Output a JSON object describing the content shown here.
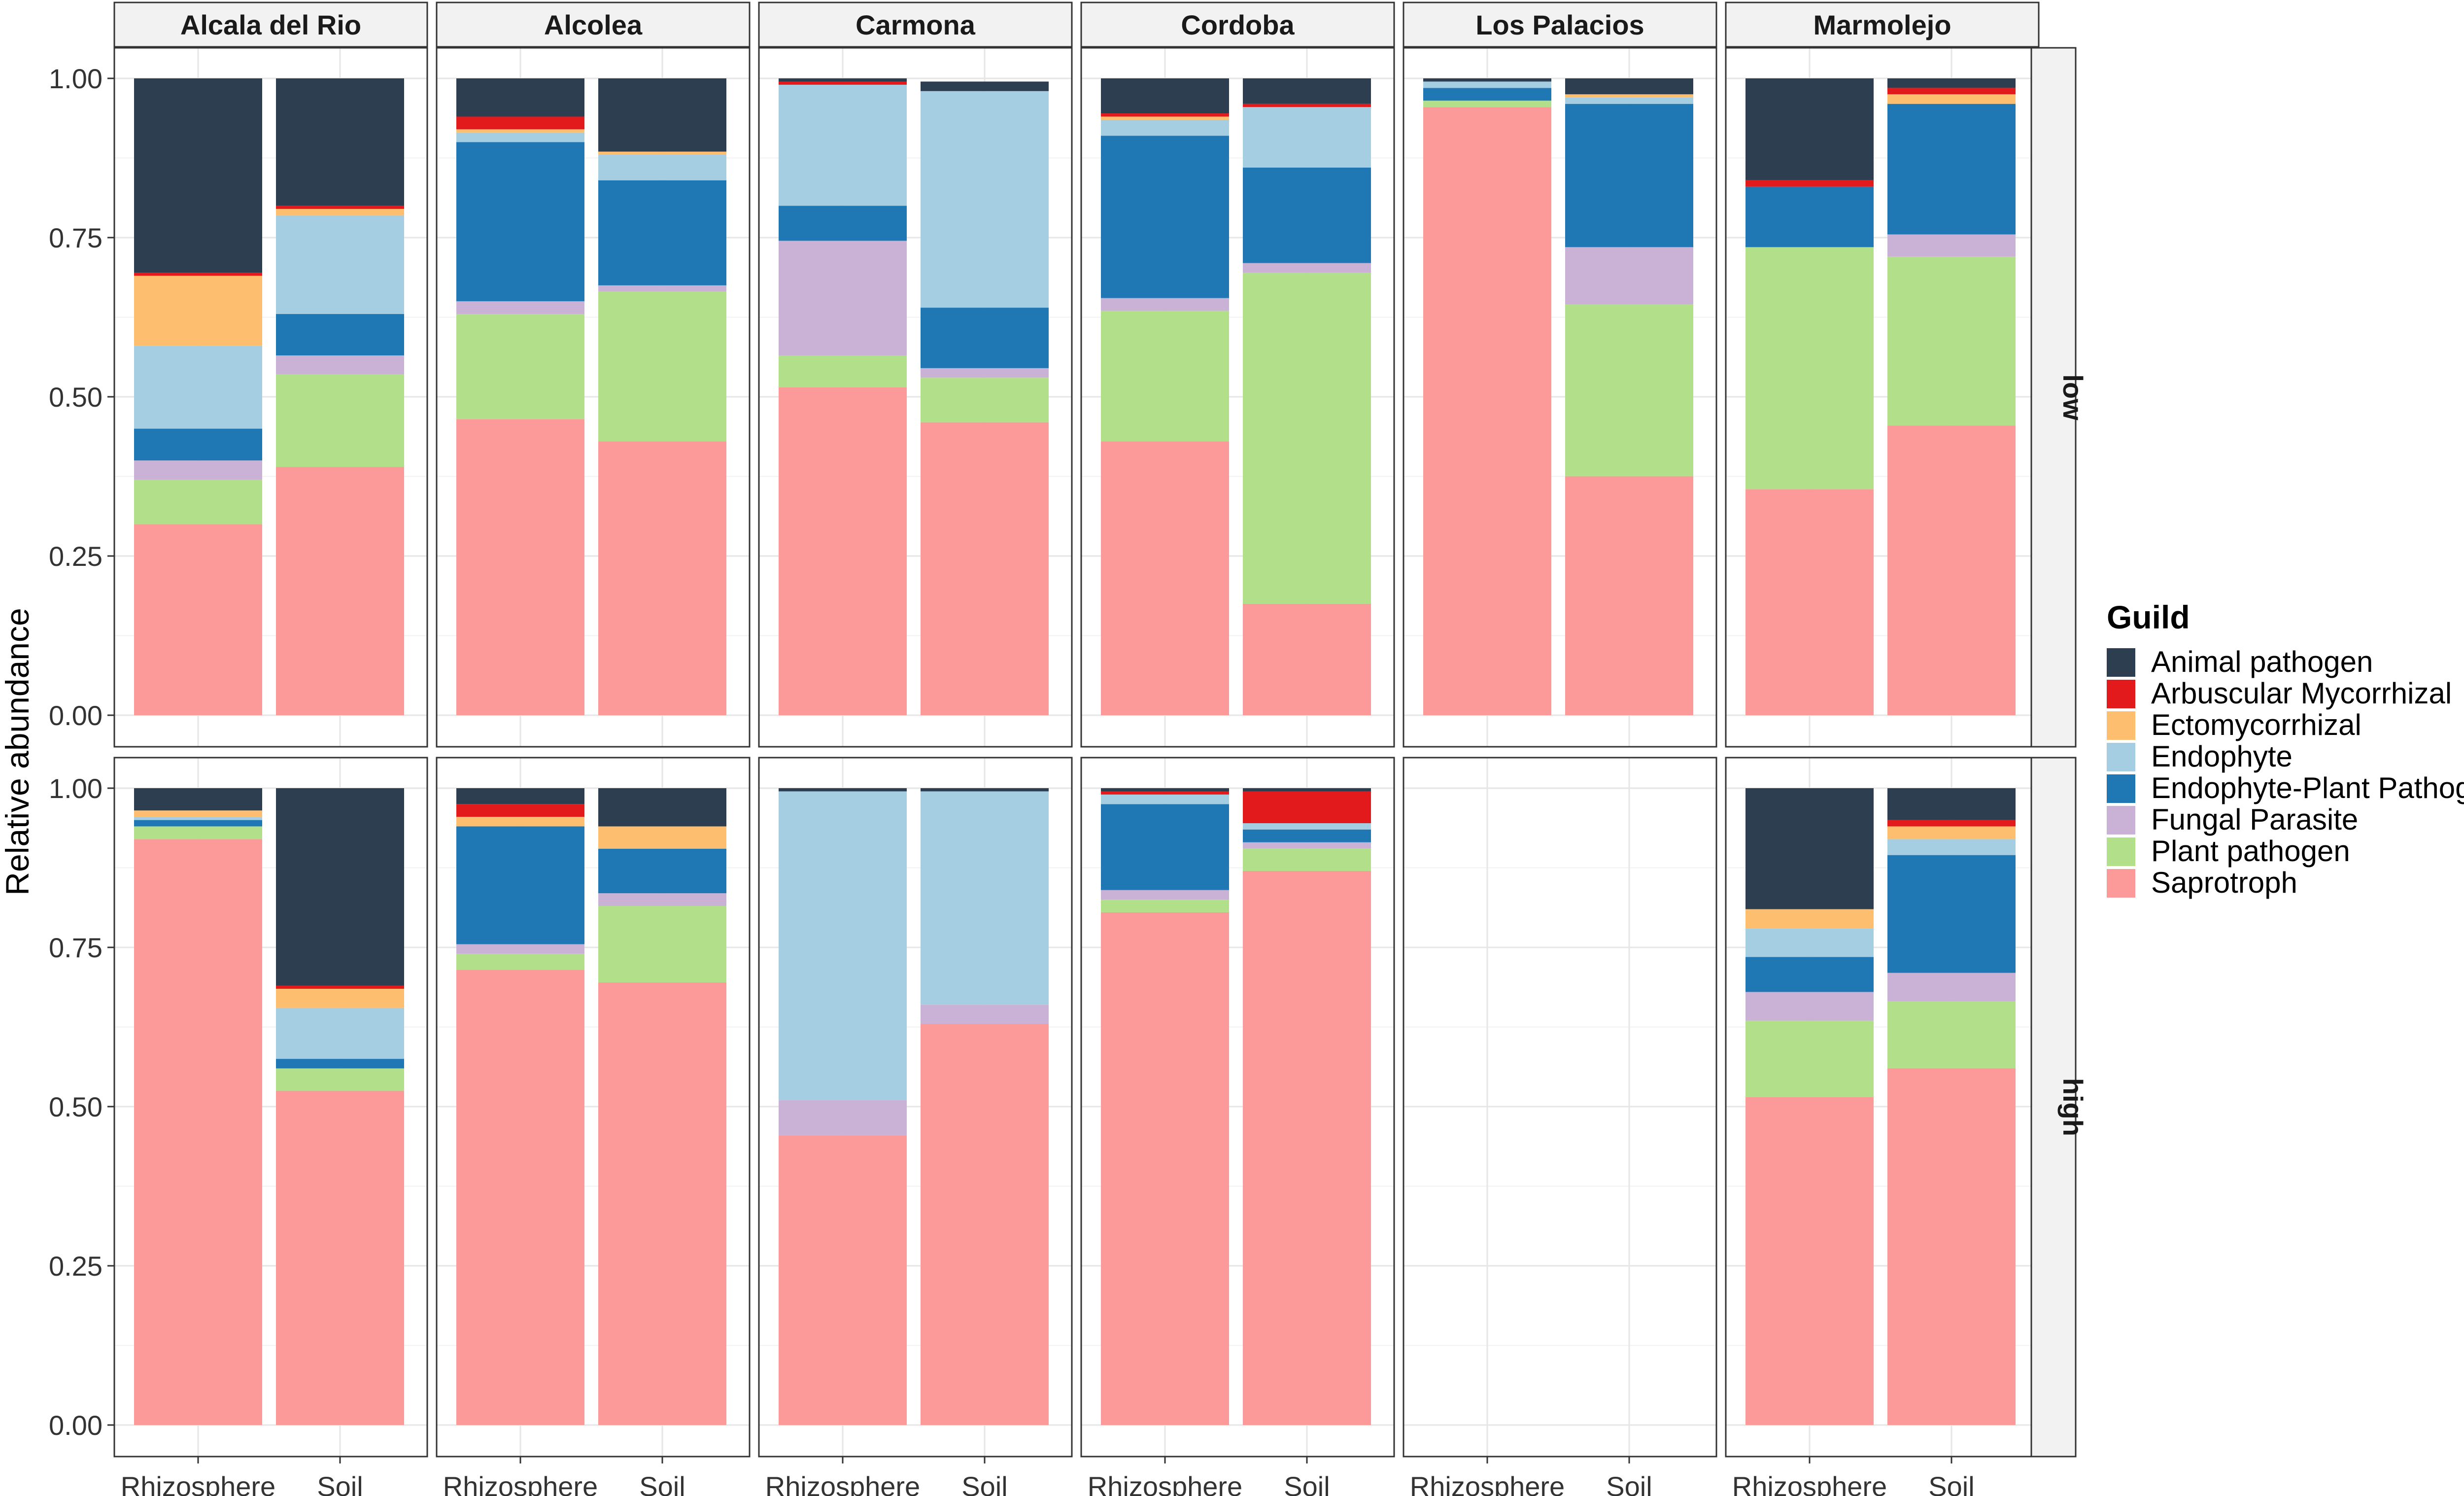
{
  "chart_data": {
    "type": "stacked-bar",
    "ylabel": "Relative abundance",
    "xlabel": "",
    "ylim": [
      0,
      1
    ],
    "yticks": [
      "0.00",
      "0.25",
      "0.50",
      "0.75",
      "1.00"
    ],
    "ytick_values": [
      0,
      0.25,
      0.5,
      0.75,
      1.0
    ],
    "grid": true,
    "legend_position": "right",
    "legend_title": "Guild",
    "categories": [
      "Rhizosphere",
      "Soil"
    ],
    "columns": [
      "Alcala del Rio",
      "Alcolea",
      "Carmona",
      "Cordoba",
      "Los Palacios",
      "Marmolejo"
    ],
    "rows": [
      "low",
      "high"
    ],
    "guilds": [
      {
        "name": "Saprotroph",
        "color": "#FB9A99"
      },
      {
        "name": "Plant pathogen",
        "color": "#B2DF8A"
      },
      {
        "name": "Fungal Parasite",
        "color": "#CAB2D6"
      },
      {
        "name": "Endophyte-Plant Pathogen",
        "color": "#1F78B4"
      },
      {
        "name": "Endophyte",
        "color": "#A6CEE3"
      },
      {
        "name": "Ectomycorrhizal",
        "color": "#FDBF6F"
      },
      {
        "name": "Arbuscular Mycorrhizal",
        "color": "#E31A1C"
      },
      {
        "name": "Animal pathogen",
        "color": "#2C3E50"
      }
    ],
    "legend_order": [
      "Animal pathogen",
      "Arbuscular Mycorrhizal",
      "Ectomycorrhizal",
      "Endophyte",
      "Endophyte-Plant Pathogen",
      "Fungal Parasite",
      "Plant pathogen",
      "Saprotroph"
    ],
    "panels": [
      {
        "row": "low",
        "column": "Alcala del Rio",
        "bars": {
          "Rhizosphere": [
            0.3,
            0.07,
            0.03,
            0.05,
            0.13,
            0.11,
            0.005,
            0.305
          ],
          "Soil": [
            0.39,
            0.145,
            0.03,
            0.065,
            0.155,
            0.01,
            0.005,
            0.2
          ]
        }
      },
      {
        "row": "low",
        "column": "Alcolea",
        "bars": {
          "Rhizosphere": [
            0.465,
            0.165,
            0.02,
            0.25,
            0.015,
            0.005,
            0.02,
            0.06
          ],
          "Soil": [
            0.43,
            0.235,
            0.01,
            0.165,
            0.04,
            0.005,
            0.0,
            0.115
          ]
        }
      },
      {
        "row": "low",
        "column": "Carmona",
        "bars": {
          "Rhizosphere": [
            0.515,
            0.05,
            0.18,
            0.055,
            0.19,
            0.0,
            0.005,
            0.005
          ],
          "Soil": [
            0.46,
            0.07,
            0.015,
            0.095,
            0.34,
            0.0,
            0.0,
            0.015
          ]
        }
      },
      {
        "row": "low",
        "column": "Cordoba",
        "bars": {
          "Rhizosphere": [
            0.43,
            0.205,
            0.02,
            0.255,
            0.025,
            0.005,
            0.005,
            0.055
          ],
          "Soil": [
            0.175,
            0.52,
            0.015,
            0.15,
            0.095,
            0.0,
            0.005,
            0.04
          ]
        }
      },
      {
        "row": "low",
        "column": "Los Palacios",
        "bars": {
          "Rhizosphere": [
            0.955,
            0.01,
            0.0,
            0.02,
            0.01,
            0.0,
            0.0,
            0.005
          ],
          "Soil": [
            0.375,
            0.27,
            0.09,
            0.225,
            0.01,
            0.005,
            0.0,
            0.025
          ]
        }
      },
      {
        "row": "low",
        "column": "Marmolejo",
        "bars": {
          "Rhizosphere": [
            0.355,
            0.38,
            0.0,
            0.095,
            0.0,
            0.0,
            0.01,
            0.16
          ],
          "Soil": [
            0.455,
            0.265,
            0.035,
            0.205,
            0.0,
            0.015,
            0.01,
            0.015
          ]
        }
      },
      {
        "row": "high",
        "column": "Alcala del Rio",
        "bars": {
          "Rhizosphere": [
            0.92,
            0.02,
            0.0,
            0.01,
            0.005,
            0.01,
            0.0,
            0.035
          ],
          "Soil": [
            0.525,
            0.035,
            0.0,
            0.015,
            0.08,
            0.03,
            0.005,
            0.31
          ]
        }
      },
      {
        "row": "high",
        "column": "Alcolea",
        "bars": {
          "Rhizosphere": [
            0.715,
            0.025,
            0.015,
            0.185,
            0.0,
            0.015,
            0.02,
            0.025
          ],
          "Soil": [
            0.695,
            0.12,
            0.02,
            0.07,
            0.0,
            0.035,
            0.0,
            0.06
          ]
        }
      },
      {
        "row": "high",
        "column": "Carmona",
        "bars": {
          "Rhizosphere": [
            0.455,
            0.0,
            0.055,
            0.0,
            0.485,
            0.0,
            0.0,
            0.005
          ],
          "Soil": [
            0.63,
            0.0,
            0.03,
            0.0,
            0.335,
            0.0,
            0.0,
            0.005
          ]
        }
      },
      {
        "row": "high",
        "column": "Cordoba",
        "bars": {
          "Rhizosphere": [
            0.805,
            0.02,
            0.015,
            0.135,
            0.015,
            0.0,
            0.005,
            0.005
          ],
          "Soil": [
            0.87,
            0.035,
            0.01,
            0.02,
            0.01,
            0.0,
            0.05,
            0.005
          ]
        }
      },
      {
        "row": "high",
        "column": "Los Palacios",
        "bars": {}
      },
      {
        "row": "high",
        "column": "Marmolejo",
        "bars": {
          "Rhizosphere": [
            0.515,
            0.12,
            0.045,
            0.055,
            0.045,
            0.03,
            0.0,
            0.19
          ],
          "Soil": [
            0.56,
            0.105,
            0.045,
            0.185,
            0.025,
            0.02,
            0.01,
            0.05
          ]
        }
      }
    ]
  }
}
